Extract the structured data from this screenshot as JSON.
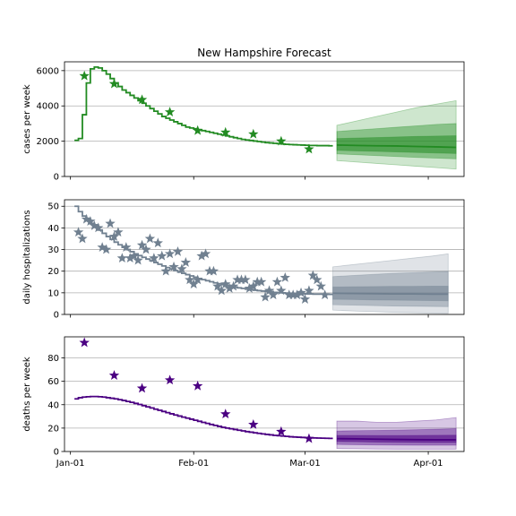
{
  "title": "New Hampshire Forecast",
  "x_axis": {
    "tick_labels": [
      "Jan-01",
      "Feb-01",
      "Mar-01",
      "Apr-01"
    ],
    "tick_days": [
      0,
      31,
      59,
      90
    ],
    "range_days": [
      -1.5,
      99
    ]
  },
  "chart_data": [
    {
      "type": "line",
      "name": "cases",
      "ylabel": "cases per week",
      "ylim": [
        0,
        6500
      ],
      "yticks": [
        0,
        2000,
        4000,
        6000
      ],
      "colors": {
        "line": "#228b22",
        "star": "#228b22",
        "band": "#228b22"
      },
      "model_step": {
        "x": [
          1,
          2,
          3,
          4,
          5,
          6,
          7,
          8,
          9,
          10,
          11,
          12,
          13,
          14,
          15,
          16,
          17,
          18,
          19,
          20,
          21,
          22,
          23,
          24,
          25,
          26,
          27,
          28,
          29,
          30,
          31,
          32,
          33,
          34,
          35,
          36,
          37,
          38,
          39,
          40,
          41,
          42,
          43,
          44,
          45,
          46,
          47,
          48,
          49,
          50,
          51,
          52,
          53,
          54,
          55,
          56,
          57,
          58,
          59,
          60,
          61,
          62,
          63,
          64,
          65
        ],
        "y": [
          2050,
          2150,
          3500,
          5300,
          6100,
          6200,
          6150,
          6000,
          5800,
          5550,
          5300,
          5100,
          4900,
          4750,
          4600,
          4450,
          4300,
          4150,
          4000,
          3850,
          3700,
          3550,
          3400,
          3300,
          3200,
          3100,
          3000,
          2900,
          2800,
          2750,
          2700,
          2650,
          2600,
          2550,
          2500,
          2450,
          2400,
          2350,
          2300,
          2250,
          2200,
          2150,
          2100,
          2070,
          2040,
          2010,
          1980,
          1950,
          1920,
          1900,
          1880,
          1860,
          1840,
          1820,
          1810,
          1800,
          1790,
          1780,
          1770,
          1760,
          1760,
          1750,
          1750,
          1750,
          1740
        ]
      },
      "observed": {
        "x": [
          3.5,
          11,
          18,
          25,
          32,
          39,
          46,
          53,
          60
        ],
        "y": [
          5700,
          5250,
          4350,
          3650,
          2600,
          2500,
          2400,
          2000,
          1550
        ]
      },
      "forecast": {
        "x": [
          67,
          72,
          77,
          82,
          87,
          92,
          97
        ],
        "median": [
          1780,
          1760,
          1740,
          1730,
          1700,
          1680,
          1650
        ],
        "p25": [
          1480,
          1450,
          1420,
          1390,
          1360,
          1330,
          1300
        ],
        "p75": [
          2150,
          2180,
          2210,
          2240,
          2270,
          2290,
          2310
        ],
        "p10": [
          1280,
          1230,
          1180,
          1130,
          1080,
          1040,
          1000
        ],
        "p90": [
          2550,
          2630,
          2710,
          2790,
          2870,
          2950,
          3000
        ],
        "p2_5": [
          900,
          820,
          740,
          660,
          580,
          500,
          420
        ],
        "p97_5": [
          2900,
          3150,
          3400,
          3650,
          3900,
          4100,
          4300
        ]
      }
    },
    {
      "type": "line",
      "name": "hospitalizations",
      "ylabel": "daily hospitalizations",
      "ylim": [
        0,
        53
      ],
      "yticks": [
        0,
        10,
        20,
        30,
        40,
        50
      ],
      "colors": {
        "line": "#708090",
        "star": "#708090",
        "band": "#708090"
      },
      "model_step": {
        "x": [
          1,
          2,
          3,
          4,
          5,
          6,
          7,
          8,
          9,
          10,
          11,
          12,
          13,
          14,
          15,
          16,
          17,
          18,
          19,
          20,
          21,
          22,
          23,
          24,
          25,
          26,
          27,
          28,
          29,
          30,
          31,
          32,
          33,
          34,
          35,
          36,
          37,
          38,
          39,
          40,
          41,
          42,
          43,
          44,
          45,
          46,
          47,
          48,
          49,
          50,
          51,
          52,
          53,
          54,
          55,
          56,
          57,
          58,
          59,
          60,
          61,
          62,
          63,
          64,
          65
        ],
        "y": [
          50,
          47.5,
          45.5,
          43.8,
          42,
          40.5,
          39,
          37.5,
          36,
          34.7,
          33.4,
          32.2,
          31,
          30,
          29,
          28,
          27.2,
          26.4,
          25.6,
          24.8,
          24,
          23.2,
          22.4,
          21.7,
          21,
          20.3,
          19.6,
          19,
          18.4,
          17.8,
          17.2,
          16.6,
          16.1,
          15.6,
          15.1,
          14.6,
          14.2,
          13.8,
          13.4,
          13,
          12.6,
          12.3,
          12,
          11.7,
          11.4,
          11.2,
          11,
          10.8,
          10.6,
          10.4,
          10.2,
          10.1,
          10,
          9.9,
          9.8,
          9.7,
          9.6,
          9.6,
          9.5,
          9.5,
          9.4,
          9.4,
          9.4,
          9.3,
          9.3
        ]
      },
      "observed": {
        "x": [
          2,
          3,
          4,
          5,
          6,
          7,
          8,
          9,
          10,
          11,
          12,
          13,
          14,
          15,
          16,
          17,
          18,
          19,
          20,
          21,
          22,
          23,
          24,
          25,
          26,
          27,
          28,
          29,
          30,
          31,
          32,
          33,
          34,
          35,
          36,
          37,
          38,
          39,
          40,
          41,
          42,
          43,
          44,
          45,
          46,
          47,
          48,
          49,
          50,
          51,
          52,
          53,
          54,
          55,
          56,
          57,
          58,
          59,
          60,
          61,
          62,
          63,
          64
        ],
        "y": [
          38,
          35,
          44,
          43,
          41,
          40,
          31,
          30,
          42,
          36,
          38,
          26,
          31,
          26,
          27,
          25,
          32,
          30,
          35,
          26,
          33,
          27,
          20,
          28,
          22,
          29,
          21,
          24,
          16,
          14,
          16,
          27,
          28,
          20,
          20,
          13,
          11,
          14,
          12,
          13,
          16,
          16,
          16,
          12,
          13,
          15,
          15,
          8,
          11,
          9,
          15,
          11,
          17,
          9,
          9,
          9,
          10,
          7,
          11,
          18,
          16,
          13,
          9
        ]
      },
      "forecast": {
        "x": [
          66,
          71,
          76,
          81,
          86,
          91,
          95
        ],
        "median": [
          9.8,
          9.7,
          9.6,
          9.5,
          9.5,
          9.4,
          9.4
        ],
        "p25": [
          7.0,
          6.9,
          6.7,
          6.6,
          6.5,
          6.4,
          6.3
        ],
        "p75": [
          12.7,
          12.8,
          12.9,
          13.0,
          13.0,
          13.1,
          13.1
        ],
        "p10": [
          4.5,
          4.3,
          4.1,
          3.9,
          3.8,
          3.7,
          3.6
        ],
        "p90": [
          17.5,
          18.0,
          18.5,
          19.0,
          19.3,
          19.6,
          19.8
        ],
        "p2_5": [
          2.0,
          1.6,
          1.3,
          1.0,
          0.8,
          0.6,
          0.5
        ],
        "p97_5": [
          22.0,
          23.0,
          24.0,
          25.0,
          26.0,
          27.0,
          28.0
        ]
      }
    },
    {
      "type": "line",
      "name": "deaths",
      "ylabel": "deaths per week",
      "ylim": [
        0,
        98
      ],
      "yticks": [
        0,
        20,
        40,
        60,
        80
      ],
      "colors": {
        "line": "#4b0082",
        "star": "#4b0082",
        "band": "#4b0082"
      },
      "model_step": {
        "x": [
          1,
          2,
          3,
          4,
          5,
          6,
          7,
          8,
          9,
          10,
          11,
          12,
          13,
          14,
          15,
          16,
          17,
          18,
          19,
          20,
          21,
          22,
          23,
          24,
          25,
          26,
          27,
          28,
          29,
          30,
          31,
          32,
          33,
          34,
          35,
          36,
          37,
          38,
          39,
          40,
          41,
          42,
          43,
          44,
          45,
          46,
          47,
          48,
          49,
          50,
          51,
          52,
          53,
          54,
          55,
          56,
          57,
          58,
          59,
          60,
          61,
          62,
          63,
          64,
          65
        ],
        "y": [
          45,
          46,
          46.5,
          46.8,
          47,
          47,
          46.8,
          46.5,
          46,
          45.5,
          45,
          44.3,
          43.6,
          42.8,
          42,
          41.1,
          40.2,
          39.2,
          38.2,
          37.2,
          36.2,
          35.2,
          34.2,
          33.2,
          32.2,
          31.2,
          30.3,
          29.4,
          28.5,
          27.6,
          26.7,
          25.8,
          24.9,
          24,
          23.1,
          22.3,
          21.5,
          20.7,
          20,
          19.4,
          18.8,
          18.2,
          17.6,
          17,
          16.5,
          16,
          15.5,
          15,
          14.6,
          14.2,
          13.8,
          13.5,
          13.2,
          12.9,
          12.6,
          12.4,
          12.2,
          12,
          11.8,
          11.7,
          11.6,
          11.5,
          11.4,
          11.3,
          11.2
        ]
      },
      "observed": {
        "x": [
          3.5,
          11,
          18,
          25,
          32,
          39,
          46,
          53,
          60
        ],
        "y": [
          93,
          65,
          54,
          61,
          56,
          32,
          23,
          17,
          11
        ]
      },
      "forecast": {
        "x": [
          67,
          72,
          77,
          82,
          87,
          92,
          97
        ],
        "median": [
          11.0,
          10.8,
          10.5,
          10.3,
          10.1,
          10.0,
          10.0
        ],
        "p25": [
          8.5,
          8.3,
          8.0,
          7.8,
          7.7,
          7.6,
          7.6
        ],
        "p75": [
          13.8,
          13.8,
          13.7,
          13.7,
          13.8,
          13.9,
          14.0
        ],
        "p10": [
          6.0,
          5.8,
          5.6,
          5.5,
          5.4,
          5.4,
          5.4
        ],
        "p90": [
          17.5,
          17.8,
          18.0,
          18.3,
          18.6,
          19.0,
          19.5
        ],
        "p2_5": [
          2.5,
          2.3,
          2.1,
          2.0,
          2.0,
          2.0,
          2.0
        ],
        "p97_5": [
          26.0,
          26.0,
          25.0,
          25.0,
          26.0,
          27.0,
          29.0
        ]
      }
    }
  ]
}
